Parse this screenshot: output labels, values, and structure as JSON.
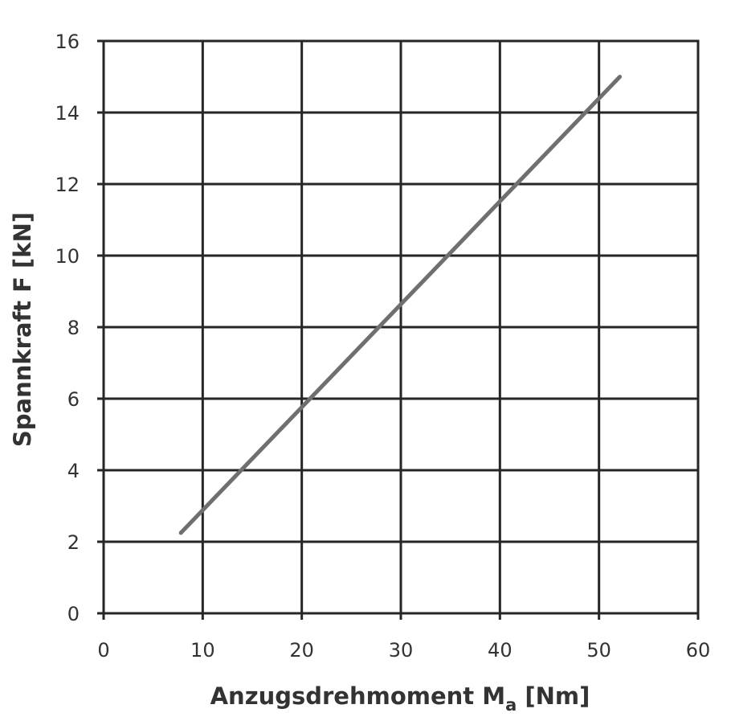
{
  "chart_data": {
    "type": "line",
    "title": "",
    "xlabel": "Anzugsdrehmoment M",
    "xlabel_subscript": "a",
    "xlabel_unit": " [Nm]",
    "ylabel": "Spannkraft F [kN]",
    "xlim": [
      0,
      60
    ],
    "ylim": [
      0,
      16
    ],
    "xticks": [
      "0",
      "10",
      "20",
      "30",
      "40",
      "50",
      "60"
    ],
    "yticks": [
      "0",
      "2",
      "4",
      "6",
      "8",
      "10",
      "12",
      "14",
      "16"
    ],
    "grid": true,
    "series": [
      {
        "x": [
          7.8,
          52.1
        ],
        "y": [
          2.25,
          15.0
        ],
        "color": "#6f6f6f"
      }
    ]
  }
}
